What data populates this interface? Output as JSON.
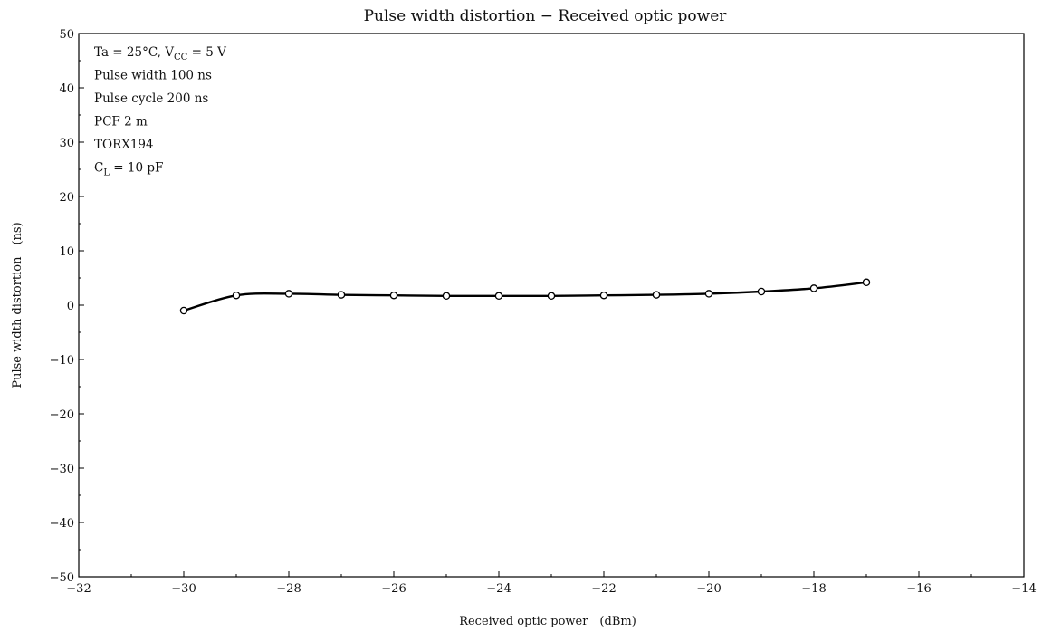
{
  "chart_data": {
    "type": "line",
    "title": "Pulse width distortion − Received optic power",
    "xlabel": "Received optic power (dBm)",
    "ylabel": "Pulse width distortion (ns)",
    "xlim": [
      -32,
      -14
    ],
    "ylim": [
      -50,
      50
    ],
    "xticks": [
      -32,
      -30,
      -28,
      -26,
      -24,
      -22,
      -20,
      -18,
      -16,
      -14
    ],
    "yticks": [
      -50,
      -40,
      -30,
      -20,
      -10,
      0,
      10,
      20,
      30,
      40,
      50
    ],
    "xtick_labels": [
      "−32",
      "−30",
      "−28",
      "−26",
      "−24",
      "−22",
      "−20",
      "−18",
      "−16",
      "−14"
    ],
    "ytick_labels": [
      "−50",
      "−40",
      "−30",
      "−20",
      "−10",
      "0",
      "10",
      "20",
      "30",
      "40",
      "50"
    ],
    "grid": false,
    "series": [
      {
        "x": [
          -30,
          -29,
          -28,
          -27,
          -26,
          -25,
          -24,
          -23,
          -22,
          -21,
          -20,
          -19,
          -18,
          -17
        ],
        "y": [
          -1.0,
          1.8,
          2.1,
          1.9,
          1.8,
          1.7,
          1.7,
          1.7,
          1.8,
          1.9,
          2.1,
          2.5,
          3.1,
          4.2
        ],
        "marker": "open-circle",
        "color": "#000000"
      }
    ],
    "conditions": [
      {
        "pre": "Ta = 25°C, V",
        "sub": "CC",
        "post": " = 5 V"
      },
      {
        "pre": "Pulse width 100 ns",
        "sub": "",
        "post": ""
      },
      {
        "pre": "Pulse cycle 200 ns",
        "sub": "",
        "post": ""
      },
      {
        "pre": "PCF 2 m",
        "sub": "",
        "post": ""
      },
      {
        "pre": "TORX194",
        "sub": "",
        "post": ""
      },
      {
        "pre": "C",
        "sub": "L",
        "post": " = 10 pF"
      }
    ]
  }
}
